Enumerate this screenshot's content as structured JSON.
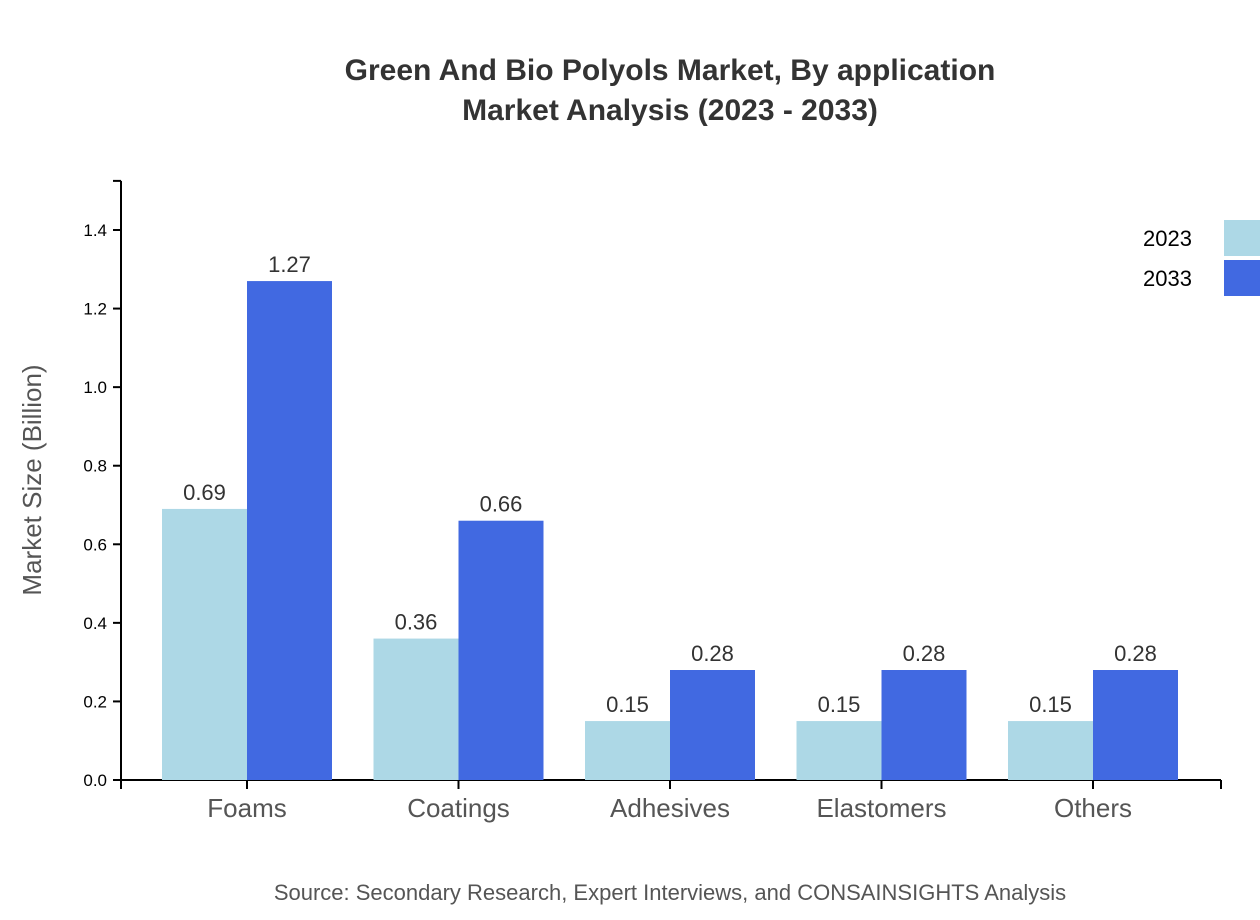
{
  "chart_data": {
    "type": "bar",
    "title": "Green And Bio Polyols Market, By application",
    "subtitle": "Market Analysis (2023 - 2033)",
    "xlabel": "",
    "ylabel": "Market Size (Billion)",
    "ylim": [
      0,
      1.525
    ],
    "yticks": [
      "0.0",
      "0.2",
      "0.4",
      "0.6",
      "0.8",
      "1.0",
      "1.2",
      "1.4"
    ],
    "categories": [
      "Foams",
      "Coatings",
      "Adhesives",
      "Elastomers",
      "Others"
    ],
    "series": [
      {
        "name": "2023",
        "color": "#ADD8E6",
        "values": [
          0.69,
          0.36,
          0.15,
          0.15,
          0.15
        ]
      },
      {
        "name": "2033",
        "color": "#4169E1",
        "values": [
          1.27,
          0.66,
          0.28,
          0.28,
          0.28
        ]
      }
    ],
    "grid": false,
    "legend": "top-right",
    "source": "Source: Secondary Research, Expert Interviews, and CONSAINSIGHTS Analysis"
  }
}
